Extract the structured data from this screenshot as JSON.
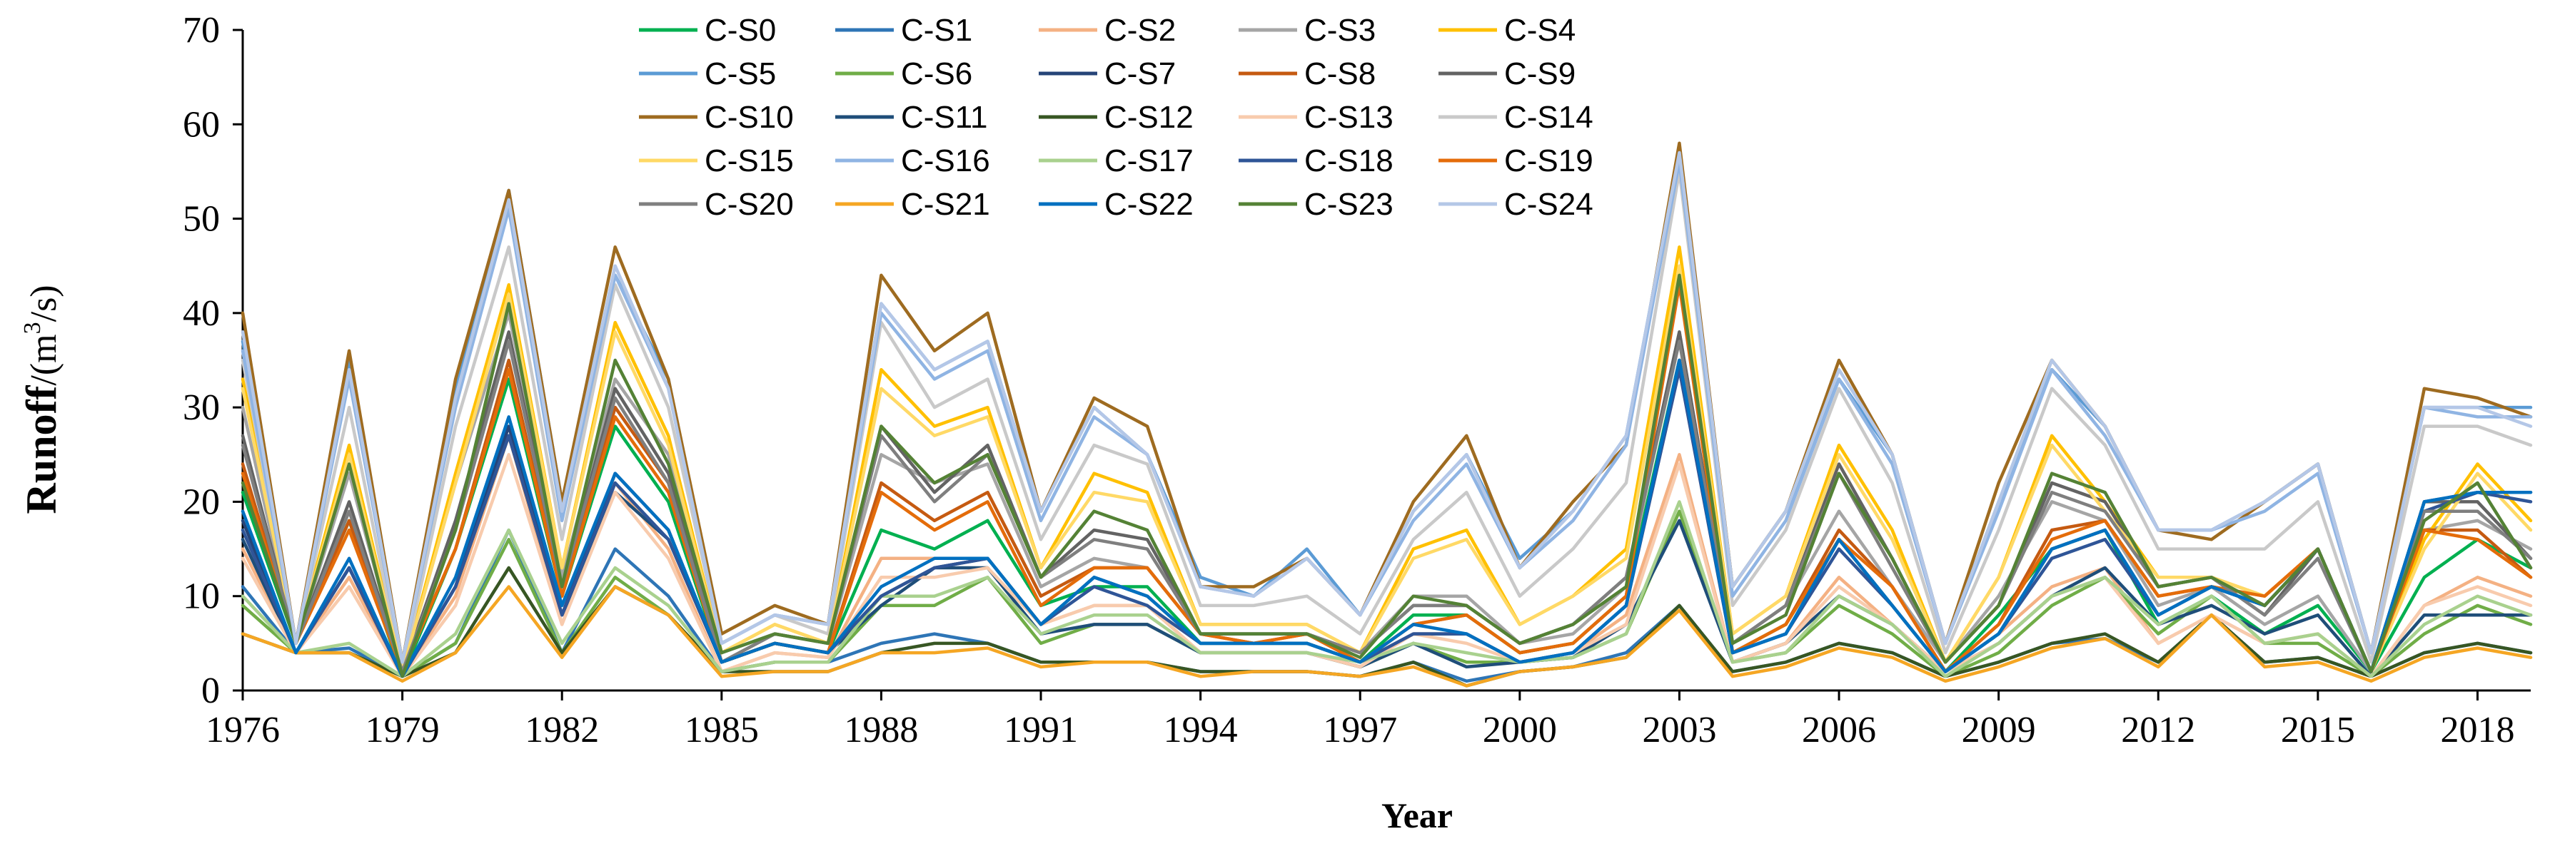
{
  "chart_data": {
    "type": "line",
    "title": "",
    "xlabel": "Year",
    "ylabel_main": "Runoff",
    "ylabel_unit_prefix": "/(m",
    "ylabel_unit_sup": "3",
    "ylabel_unit_suffix": "/s)",
    "xlim": [
      1976,
      2019
    ],
    "ylim": [
      0,
      70
    ],
    "y_ticks": [
      0,
      10,
      20,
      30,
      40,
      50,
      60,
      70
    ],
    "x_ticks": [
      1976,
      1979,
      1982,
      1985,
      1988,
      1991,
      1994,
      1997,
      2000,
      2003,
      2006,
      2009,
      2012,
      2015,
      2018
    ],
    "legend_position": "top",
    "grid": false,
    "x": [
      1976,
      1977,
      1978,
      1979,
      1980,
      1981,
      1982,
      1983,
      1984,
      1985,
      1986,
      1987,
      1988,
      1989,
      1990,
      1991,
      1992,
      1993,
      1994,
      1995,
      1996,
      1997,
      1998,
      1999,
      2000,
      2001,
      2002,
      2003,
      2004,
      2005,
      2006,
      2007,
      2008,
      2009,
      2010,
      2011,
      2012,
      2013,
      2014,
      2015,
      2016,
      2017,
      2018,
      2019
    ],
    "series": [
      {
        "name": "C-S0",
        "color": "#00b050",
        "values": [
          21,
          5,
          18,
          1.5,
          15,
          33,
          10,
          28,
          20,
          3,
          5,
          4,
          17,
          15,
          18,
          9,
          11,
          11,
          5,
          5,
          5,
          3,
          8,
          8,
          4,
          5,
          10,
          35,
          4,
          7,
          16,
          9,
          2,
          8,
          15,
          17,
          7,
          10,
          6,
          9,
          2,
          12,
          16,
          13
        ]
      },
      {
        "name": "C-S1",
        "color": "#2e75b6",
        "values": [
          11,
          4,
          4.5,
          1.5,
          5,
          17,
          4,
          15,
          10,
          2,
          3,
          3,
          5,
          6,
          5,
          3,
          3,
          3,
          2,
          2,
          2,
          1.5,
          3,
          1,
          2,
          2.5,
          4,
          9,
          2,
          3,
          5,
          4,
          1.5,
          3,
          5,
          5.5,
          3,
          8,
          3,
          3.5,
          1.5,
          4,
          5,
          4
        ]
      },
      {
        "name": "C-S2",
        "color": "#f4b183",
        "values": [
          15,
          4,
          12,
          1.5,
          10,
          27,
          7,
          22,
          15,
          2,
          4,
          3.5,
          14,
          14,
          14,
          7,
          9,
          9,
          4,
          4,
          4,
          2.5,
          6,
          6,
          3,
          4,
          8,
          25,
          3,
          5,
          12,
          7,
          2,
          6,
          11,
          13,
          5,
          8,
          5,
          6,
          1.5,
          9,
          12,
          10
        ]
      },
      {
        "name": "C-S3",
        "color": "#a5a5a5",
        "values": [
          30,
          5,
          23,
          2,
          22,
          40,
          12,
          33,
          25,
          4,
          6,
          5,
          25,
          22,
          24,
          11,
          14,
          13,
          6,
          6,
          6,
          4,
          10,
          10,
          5,
          6,
          11,
          38,
          5,
          9,
          19,
          11,
          3,
          10,
          20,
          18,
          9,
          11,
          7,
          10,
          2,
          17,
          18,
          15
        ]
      },
      {
        "name": "C-S4",
        "color": "#ffc000",
        "values": [
          33,
          5,
          26,
          2,
          23,
          43,
          13,
          39,
          27,
          4,
          7,
          5,
          34,
          28,
          30,
          13,
          23,
          21,
          7,
          7,
          7,
          4,
          15,
          17,
          7,
          10,
          15,
          47,
          6,
          10,
          26,
          17,
          3,
          12,
          27,
          20,
          12,
          12,
          10,
          15,
          2,
          16,
          24,
          18
        ]
      },
      {
        "name": "C-S5",
        "color": "#5b9bd5",
        "values": [
          37,
          5,
          35,
          3,
          32,
          53,
          20,
          44,
          33,
          5,
          8,
          7,
          41,
          34,
          37,
          19,
          30,
          25,
          12,
          10,
          15,
          8,
          19,
          25,
          14,
          19,
          27,
          57,
          11,
          19,
          33,
          25,
          5,
          20,
          34,
          28,
          17,
          17,
          20,
          24,
          4,
          30,
          30,
          30
        ]
      },
      {
        "name": "C-S6",
        "color": "#70ad47",
        "values": [
          9,
          4,
          4,
          1.5,
          5,
          16,
          4,
          12,
          8,
          2,
          3,
          3,
          9,
          9,
          12,
          5,
          7,
          7,
          4,
          4,
          4,
          2.5,
          5,
          3,
          3,
          3.5,
          6,
          19,
          3,
          4,
          9,
          6,
          1.5,
          4,
          9,
          12,
          6,
          10,
          5,
          5,
          1.5,
          6,
          9,
          7
        ]
      },
      {
        "name": "C-S7",
        "color": "#264478",
        "values": [
          18,
          4,
          13,
          1.5,
          11,
          28,
          8,
          23,
          17,
          3,
          5,
          4,
          10,
          13,
          14,
          7,
          12,
          10,
          5,
          5,
          5,
          3,
          6,
          6,
          3,
          4,
          9,
          35,
          4,
          6,
          16,
          9,
          2,
          6,
          15,
          17,
          8,
          11,
          9,
          15,
          2,
          20,
          21,
          21
        ]
      },
      {
        "name": "C-S8",
        "color": "#c55a11",
        "values": [
          24,
          5,
          18,
          2,
          15,
          35,
          10,
          30,
          22,
          3,
          5,
          4,
          22,
          18,
          21,
          10,
          13,
          13,
          6,
          5,
          6,
          3,
          7,
          8,
          4,
          5,
          10,
          44,
          4,
          7,
          17,
          11,
          2,
          7,
          17,
          18,
          10,
          11,
          10,
          15,
          2,
          17,
          17,
          12
        ]
      },
      {
        "name": "C-S9",
        "color": "#636363",
        "values": [
          27,
          5,
          20,
          2,
          18,
          38,
          11,
          32,
          23,
          3,
          6,
          5,
          28,
          21,
          26,
          12,
          17,
          16,
          6,
          6,
          6,
          4,
          9,
          9,
          5,
          7,
          12,
          38,
          5,
          9,
          24,
          14,
          3,
          9,
          22,
          20,
          11,
          12,
          8,
          15,
          2,
          20,
          20,
          14
        ]
      },
      {
        "name": "C-S10",
        "color": "#9e6b20",
        "values": [
          40,
          5,
          36,
          3,
          33,
          53,
          20,
          47,
          33,
          6,
          9,
          7,
          44,
          36,
          40,
          19,
          31,
          28,
          11,
          11,
          14,
          8,
          20,
          27,
          13,
          20,
          26,
          58,
          11,
          19,
          35,
          25,
          5,
          22,
          35,
          28,
          17,
          16,
          20,
          24,
          4,
          32,
          31,
          29
        ]
      },
      {
        "name": "C-S11",
        "color": "#1f4e79",
        "values": [
          16,
          4,
          13,
          1.5,
          11,
          27,
          8,
          21,
          16,
          3,
          5,
          4,
          9,
          13,
          13,
          6,
          7,
          7,
          4,
          4,
          4,
          2.5,
          5,
          2.5,
          3,
          3.5,
          7,
          18,
          3,
          5,
          10,
          7,
          2,
          5,
          10,
          13,
          7,
          9,
          6,
          8,
          1.5,
          8,
          8,
          8
        ]
      },
      {
        "name": "C-S12",
        "color": "#375623",
        "values": [
          6,
          4,
          4,
          1.5,
          4,
          13,
          4,
          11,
          8,
          2,
          2,
          2,
          4,
          5,
          5,
          3,
          3,
          3,
          2,
          2,
          2,
          1.5,
          3,
          0.5,
          2,
          2.5,
          3.5,
          9,
          2,
          3,
          5,
          4,
          1.5,
          3,
          5,
          6,
          3,
          8,
          3,
          3.5,
          1.5,
          4,
          5,
          4
        ]
      },
      {
        "name": "C-S13",
        "color": "#f8cbad",
        "values": [
          14,
          4,
          11,
          1.5,
          9,
          25,
          7,
          21,
          14,
          2,
          4,
          3.5,
          12,
          12,
          13,
          7,
          9,
          9,
          4,
          4,
          4,
          2.5,
          6,
          5,
          3,
          4,
          7,
          24,
          3,
          5,
          11,
          7,
          2,
          5,
          10,
          12,
          5,
          8,
          5,
          6,
          1.5,
          9,
          11,
          9
        ]
      },
      {
        "name": "C-S14",
        "color": "#c9c9c9",
        "values": [
          35,
          5,
          30,
          2,
          28,
          47,
          16,
          43,
          30,
          5,
          8,
          6,
          39,
          30,
          33,
          16,
          26,
          24,
          9,
          9,
          10,
          6,
          16,
          21,
          10,
          15,
          22,
          55,
          9,
          17,
          32,
          22,
          4,
          17,
          32,
          26,
          15,
          15,
          15,
          20,
          3,
          28,
          28,
          26
        ]
      },
      {
        "name": "C-S15",
        "color": "#ffd966",
        "values": [
          32,
          5,
          25,
          2,
          22,
          42,
          13,
          38,
          26,
          4,
          7,
          5,
          32,
          27,
          29,
          13,
          21,
          20,
          7,
          7,
          7,
          4,
          14,
          16,
          7,
          10,
          14,
          45,
          6,
          10,
          25,
          16,
          3,
          12,
          26,
          19,
          12,
          12,
          10,
          15,
          2,
          15,
          23,
          17
        ]
      },
      {
        "name": "C-S16",
        "color": "#8fb4e3",
        "values": [
          36,
          5,
          33,
          3,
          30,
          51,
          18,
          44,
          32,
          5,
          8,
          7,
          40,
          33,
          36,
          18,
          29,
          25,
          11,
          10,
          14,
          8,
          18,
          24,
          13,
          18,
          26,
          56,
          10,
          18,
          33,
          24,
          5,
          19,
          34,
          27,
          17,
          17,
          19,
          23,
          4,
          30,
          29,
          29
        ]
      },
      {
        "name": "C-S17",
        "color": "#a9d18e",
        "values": [
          10,
          4,
          5,
          1.5,
          6,
          17,
          5,
          13,
          9,
          2,
          3,
          3,
          10,
          10,
          12,
          6,
          8,
          8,
          4,
          4,
          4,
          3,
          5,
          4,
          3,
          3.5,
          6,
          20,
          3,
          4,
          10,
          7,
          1.5,
          5,
          10,
          12,
          7,
          10,
          5,
          6,
          1.5,
          7,
          10,
          8
        ]
      },
      {
        "name": "C-S18",
        "color": "#2f5597",
        "values": [
          17,
          4,
          13,
          1.5,
          11,
          27,
          8,
          22,
          16,
          3,
          5,
          4,
          10,
          13,
          14,
          7,
          11,
          9,
          5,
          5,
          5,
          3,
          6,
          6,
          3,
          4,
          9,
          34,
          4,
          6,
          15,
          9,
          2,
          6,
          14,
          16,
          8,
          11,
          9,
          15,
          2,
          19,
          21,
          20
        ]
      },
      {
        "name": "C-S19",
        "color": "#e46c0a",
        "values": [
          23,
          5,
          17,
          2,
          15,
          34,
          10,
          29,
          21,
          3,
          5,
          4,
          21,
          17,
          20,
          9,
          13,
          13,
          6,
          5,
          6,
          3,
          7,
          8,
          4,
          5,
          10,
          43,
          4,
          7,
          16,
          11,
          2,
          7,
          16,
          18,
          10,
          11,
          10,
          15,
          2,
          17,
          16,
          12
        ]
      },
      {
        "name": "C-S20",
        "color": "#7f7f7f",
        "values": [
          26,
          5,
          19,
          2,
          17,
          37,
          11,
          31,
          22,
          3,
          6,
          5,
          27,
          20,
          25,
          12,
          16,
          15,
          6,
          6,
          6,
          4,
          9,
          9,
          5,
          7,
          12,
          37,
          5,
          9,
          23,
          13,
          3,
          9,
          21,
          19,
          11,
          12,
          8,
          14,
          2,
          19,
          19,
          14
        ]
      },
      {
        "name": "C-S21",
        "color": "#f5a623",
        "values": [
          6,
          4,
          4,
          1,
          4,
          11,
          3.5,
          11,
          8,
          1.5,
          2,
          2,
          4,
          4,
          4.5,
          2.5,
          3,
          3,
          1.5,
          2,
          2,
          1.5,
          2.5,
          0.5,
          2,
          2.5,
          3.5,
          8.5,
          1.5,
          2.5,
          4.5,
          3.5,
          1,
          2.5,
          4.5,
          5.5,
          2.5,
          8,
          2.5,
          3,
          1,
          3.5,
          4.5,
          3.5
        ]
      },
      {
        "name": "C-S22",
        "color": "#0070c0",
        "values": [
          19,
          4,
          14,
          1.5,
          12,
          29,
          9,
          23,
          17,
          3,
          5,
          4,
          11,
          14,
          14,
          7,
          12,
          10,
          5,
          5,
          5,
          3,
          7,
          6,
          3,
          4,
          9,
          35,
          4,
          6,
          16,
          9,
          2,
          6,
          15,
          17,
          8,
          11,
          9,
          15,
          2,
          20,
          21,
          21
        ]
      },
      {
        "name": "C-S23",
        "color": "#548235",
        "values": [
          22,
          5,
          24,
          1.5,
          17,
          41,
          11,
          35,
          24,
          4,
          6,
          5,
          28,
          22,
          25,
          12,
          19,
          17,
          6,
          6,
          6,
          3.5,
          10,
          9,
          5,
          7,
          11,
          44,
          5,
          8,
          23,
          14,
          3,
          9,
          23,
          21,
          11,
          12,
          9,
          15,
          2,
          18,
          22,
          13
        ]
      },
      {
        "name": "C-S24",
        "color": "#b4c7e7",
        "values": [
          38,
          5,
          34,
          3,
          31,
          52,
          19,
          45,
          32,
          5,
          8,
          7,
          41,
          34,
          37,
          19,
          30,
          25,
          11,
          10,
          14,
          8,
          19,
          25,
          13,
          19,
          27,
          57,
          11,
          19,
          34,
          25,
          5,
          20,
          35,
          28,
          17,
          17,
          20,
          24,
          4,
          30,
          30,
          28
        ]
      }
    ]
  }
}
